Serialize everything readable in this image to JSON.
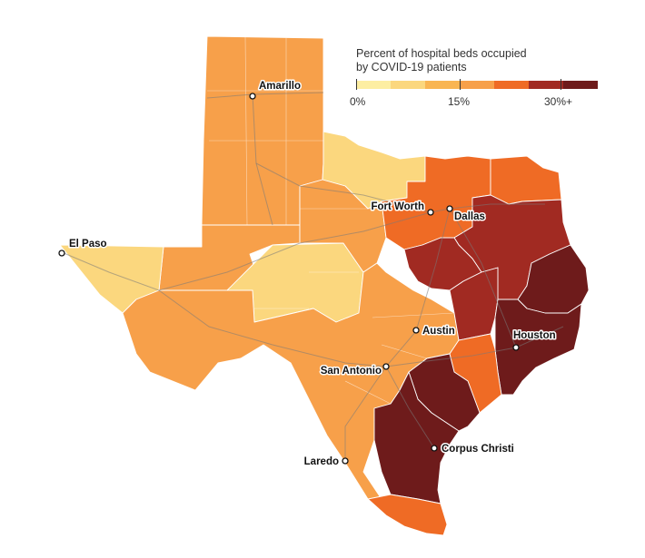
{
  "legend": {
    "title_line1": "Percent of hospital beds occupied",
    "title_line2": "by COVID-19 patients",
    "tick_0": "0%",
    "tick_15": "15%",
    "tick_30": "30%+",
    "colors": [
      "#fdeea2",
      "#fbd77e",
      "#f9b552",
      "#f7a04a",
      "#ef6b25",
      "#a12a22",
      "#6e1b1b"
    ]
  },
  "cities": [
    {
      "name": "Amarillo"
    },
    {
      "name": "El Paso"
    },
    {
      "name": "Fort Worth"
    },
    {
      "name": "Dallas"
    },
    {
      "name": "Austin"
    },
    {
      "name": "Houston"
    },
    {
      "name": "San Antonio"
    },
    {
      "name": "Laredo"
    },
    {
      "name": "Corpus Christi"
    }
  ],
  "regions": [
    {
      "id": "panhandle",
      "level": 3
    },
    {
      "id": "west-central",
      "level": 3
    },
    {
      "id": "el-paso",
      "level": 1
    },
    {
      "id": "permian",
      "level": 1
    },
    {
      "id": "north-central",
      "level": 1
    },
    {
      "id": "west-texas",
      "level": 3
    },
    {
      "id": "south-texas",
      "level": 3
    },
    {
      "id": "dfw",
      "level": 4
    },
    {
      "id": "northeast",
      "level": 4
    },
    {
      "id": "east-texas",
      "level": 5
    },
    {
      "id": "waco",
      "level": 5
    },
    {
      "id": "brazos",
      "level": 5
    },
    {
      "id": "beaumont",
      "level": 6
    },
    {
      "id": "houston",
      "level": 6
    },
    {
      "id": "se-coast",
      "level": 4
    },
    {
      "id": "victoria",
      "level": 6
    },
    {
      "id": "coastal-bend",
      "level": 6
    },
    {
      "id": "rio-grande",
      "level": 4
    }
  ]
}
